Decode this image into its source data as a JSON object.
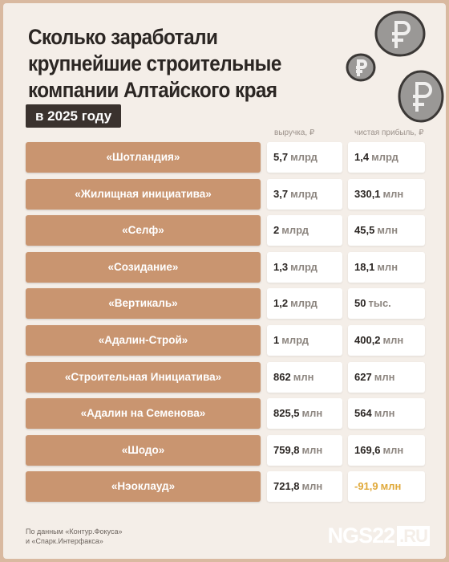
{
  "header": {
    "title": [
      "Сколько заработали",
      "крупнейшие строительные",
      "компании Алтайского края"
    ],
    "subtitle": "в 2025 году"
  },
  "table": {
    "columns": [
      "выручка, ₽",
      "чистая прибыль, ₽"
    ],
    "rows": [
      {
        "name": "«Шотландия»",
        "revenue": {
          "num": "5,7",
          "unit": "млрд"
        },
        "profit": {
          "num": "1,4",
          "unit": "млрд"
        }
      },
      {
        "name": "«Жилищная инициатива»",
        "revenue": {
          "num": "3,7",
          "unit": "млрд"
        },
        "profit": {
          "num": "330,1",
          "unit": "млн"
        }
      },
      {
        "name": "«Селф»",
        "revenue": {
          "num": "2",
          "unit": "млрд"
        },
        "profit": {
          "num": "45,5",
          "unit": "млн"
        }
      },
      {
        "name": "«Созидание»",
        "revenue": {
          "num": "1,3",
          "unit": "млрд"
        },
        "profit": {
          "num": "18,1",
          "unit": "млн"
        }
      },
      {
        "name": "«Вертикаль»",
        "revenue": {
          "num": "1,2",
          "unit": "млрд"
        },
        "profit": {
          "num": "50",
          "unit": "тыс."
        }
      },
      {
        "name": "«Адалин-Строй»",
        "revenue": {
          "num": "1",
          "unit": "млрд"
        },
        "profit": {
          "num": "400,2",
          "unit": "млн"
        }
      },
      {
        "name": "«Строительная Инициатива»",
        "revenue": {
          "num": "862",
          "unit": "млн"
        },
        "profit": {
          "num": "627",
          "unit": "млн"
        }
      },
      {
        "name": "«Адалин на Семенова»",
        "revenue": {
          "num": "825,5",
          "unit": "млн"
        },
        "profit": {
          "num": "564",
          "unit": "млн"
        }
      },
      {
        "name": "«Шодо»",
        "revenue": {
          "num": "759,8",
          "unit": "млн"
        },
        "profit": {
          "num": "169,6",
          "unit": "млн"
        }
      },
      {
        "name": "«Нэоклауд»",
        "revenue": {
          "num": "721,8",
          "unit": "млн"
        },
        "profit": {
          "num": "-91,9",
          "unit": "млн"
        }
      }
    ]
  },
  "footer": {
    "source": [
      "По данным «Контур.Фокуса»",
      "и «Спарк.Интерфакса»"
    ],
    "logo": "NGS22",
    "logo_suffix": ".RU"
  }
}
